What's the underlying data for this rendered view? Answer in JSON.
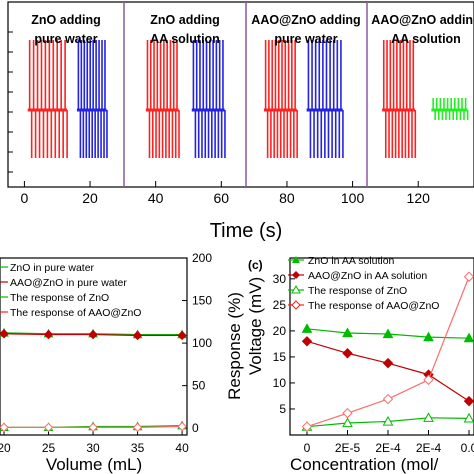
{
  "colors": {
    "red": "#ff2020",
    "blue": "#2323e0",
    "green": "#22ee22",
    "dark_red": "#c00000",
    "panel_border": "#8a5aa0",
    "black": "#000000",
    "green_marker": "#00bb00",
    "open_marker": "#ff6a6a"
  },
  "chart_data": [
    {
      "type": "line",
      "panel": "top",
      "xlabel": "Time (s)",
      "xticks": [
        "0",
        "20",
        "40",
        "60",
        "80",
        "100",
        "120"
      ],
      "segment_titles": [
        [
          "ZnO adding",
          "pure water"
        ],
        [
          "ZnO adding",
          "AA solution"
        ],
        [
          "AAO@ZnO adding",
          "pure water"
        ],
        [
          "AAO@ZnO adding",
          "AA solution"
        ]
      ],
      "series": [
        {
          "segment": 1,
          "color": "red",
          "x_start": 1,
          "x_end": 13,
          "pulses": 10
        },
        {
          "segment": 1,
          "color": "blue",
          "x_start": 16,
          "x_end": 25,
          "pulses": 10
        },
        {
          "segment": 2,
          "color": "red",
          "x_start": 37,
          "x_end": 47,
          "pulses": 10
        },
        {
          "segment": 2,
          "color": "blue",
          "x_start": 51,
          "x_end": 61,
          "pulses": 10
        },
        {
          "segment": 3,
          "color": "red",
          "x_start": 73,
          "x_end": 83,
          "pulses": 10
        },
        {
          "segment": 3,
          "color": "blue",
          "x_start": 86,
          "x_end": 97,
          "pulses": 10
        },
        {
          "segment": 4,
          "color": "red",
          "x_start": 109,
          "x_end": 119,
          "pulses": 10
        },
        {
          "segment": 4,
          "color": "green",
          "x_start": 124,
          "x_end": 135,
          "pulses": 10
        }
      ],
      "xlim": [
        -5,
        137
      ]
    },
    {
      "type": "line",
      "panel": "b",
      "xlabel": "Volume (mL)",
      "y2label": "Response (%)",
      "x": [
        20,
        25,
        30,
        35,
        40
      ],
      "xlim": [
        20,
        41
      ],
      "y2lim": [
        -8,
        200
      ],
      "y2ticks": [
        "200",
        "150",
        "100",
        "50",
        "0"
      ],
      "xticks": [
        "20",
        "25",
        "30",
        "35",
        "40"
      ],
      "legend": [
        "ZnO in pure water",
        "AAO@ZnO in pure water",
        "The response of ZnO",
        "The response of AAO@ZnO"
      ],
      "series": [
        {
          "name": "ZnO in pure water",
          "values": [
            112,
            111,
            111,
            110,
            110
          ]
        },
        {
          "name": "AAO@ZnO in pure water",
          "values": [
            111,
            110,
            110,
            109,
            109
          ]
        },
        {
          "name": "The response of ZnO",
          "values": [
            1,
            1,
            2,
            2,
            3
          ]
        },
        {
          "name": "The response of AAO@ZnO",
          "values": [
            1,
            1,
            1,
            1,
            2
          ]
        }
      ]
    },
    {
      "type": "line",
      "panel": "c",
      "panel_label": "(c)",
      "xlabel": "Concentration (mol/",
      "ylabel": "Voltage (mV)",
      "xticks": [
        "0",
        "2E-5",
        "2E-4",
        "2E-4",
        "0.0"
      ],
      "yticks": [
        "30",
        "25",
        "20",
        "15",
        "10",
        "5"
      ],
      "ylim": [
        0,
        34
      ],
      "legend": [
        "ZnO in AA solution",
        "AAO@ZnO in AA solution",
        "The response of ZnO",
        "The response of AAO@ZnO"
      ],
      "series": [
        {
          "name": "ZnO in AA solution",
          "values": [
            20.4,
            19.6,
            19.4,
            18.8,
            18.6
          ]
        },
        {
          "name": "AAO@ZnO in AA solution",
          "values": [
            18.0,
            15.7,
            13.8,
            11.6,
            6.5
          ]
        },
        {
          "name": "The response of ZnO",
          "values": [
            1.6,
            2.3,
            2.6,
            3.3,
            3.2
          ]
        },
        {
          "name": "The response of AAO@ZnO",
          "values": [
            1.6,
            4.2,
            6.9,
            10.6,
            30.4
          ]
        }
      ]
    }
  ]
}
